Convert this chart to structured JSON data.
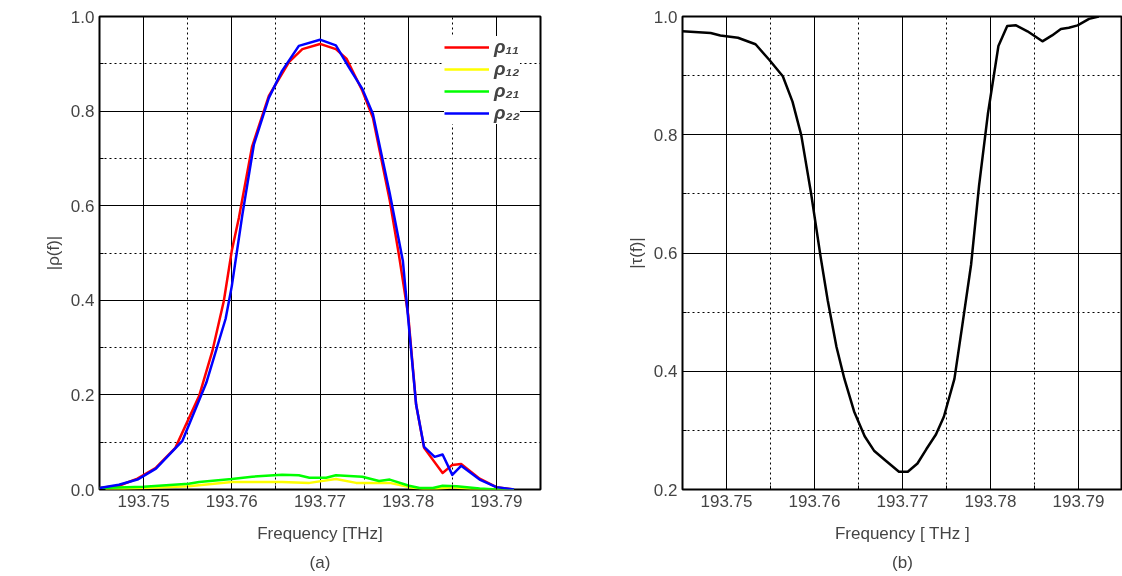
{
  "chart_data": [
    {
      "type": "line",
      "xlabel": "Frequency [THz]",
      "ylabel": "|ρ(f)|",
      "annotations": [
        "(a)"
      ],
      "xlim": [
        193.745,
        193.795
      ],
      "ylim": [
        0,
        1
      ],
      "xticks": [
        {
          "value": 193.75,
          "label": "193.75"
        },
        {
          "value": 193.755,
          "label": null
        },
        {
          "value": 193.76,
          "label": "193.76"
        },
        {
          "value": 193.765,
          "label": null
        },
        {
          "value": 193.77,
          "label": "193.77"
        },
        {
          "value": 193.775,
          "label": null
        },
        {
          "value": 193.78,
          "label": "193.78"
        },
        {
          "value": 193.785,
          "label": null
        },
        {
          "value": 193.79,
          "label": "193.79"
        }
      ],
      "yticks": [
        {
          "value": 0,
          "label": "0.0"
        },
        {
          "value": 0.1,
          "label": null
        },
        {
          "value": 0.2,
          "label": "0.2"
        },
        {
          "value": 0.3,
          "label": null
        },
        {
          "value": 0.4,
          "label": "0.4"
        },
        {
          "value": 0.5,
          "label": null
        },
        {
          "value": 0.6,
          "label": "0.6"
        },
        {
          "value": 0.7,
          "label": null
        },
        {
          "value": 0.8,
          "label": "0.8"
        },
        {
          "value": 0.9,
          "label": null
        },
        {
          "value": 1,
          "label": "1.0"
        }
      ],
      "grid": true,
      "legend": "top right",
      "line_style": "solid",
      "series": [
        {
          "name": "ρ₁₁",
          "color": "#ff0000",
          "x": [
            193.745,
            193.7472,
            193.7493,
            193.7514,
            193.7536,
            193.7563,
            193.7578,
            193.7591,
            193.76,
            193.7608,
            193.7623,
            193.7642,
            193.7665,
            193.768,
            193.77,
            193.7718,
            193.773,
            193.7748,
            193.776,
            193.7779,
            193.779,
            193.78,
            193.7809,
            193.7818,
            193.7839,
            193.785,
            193.786,
            193.7881,
            193.79,
            193.792
          ],
          "values": [
            0.003,
            0.008,
            0.023,
            0.046,
            0.088,
            0.198,
            0.293,
            0.399,
            0.505,
            0.574,
            0.725,
            0.832,
            0.904,
            0.931,
            0.942,
            0.931,
            0.911,
            0.843,
            0.786,
            0.612,
            0.49,
            0.369,
            0.179,
            0.088,
            0.035,
            0.052,
            0.054,
            0.023,
            0.005,
            0
          ]
        },
        {
          "name": "ρ₁₂",
          "color": "#ffff00",
          "x": [
            193.745,
            193.75,
            193.7551,
            193.76,
            193.7657,
            193.7688,
            193.7718,
            193.7741,
            193.7779,
            193.7801,
            193.7824,
            193.785,
            193.7881,
            193.792
          ],
          "values": [
            0,
            0.003,
            0.007,
            0.016,
            0.016,
            0.014,
            0.022,
            0.014,
            0.014,
            0.005,
            0,
            0.005,
            0,
            0
          ]
        },
        {
          "name": "ρ₂₁",
          "color": "#00ff00",
          "x": [
            193.745,
            193.75,
            193.7551,
            193.7563,
            193.76,
            193.7623,
            193.7657,
            193.7676,
            193.7688,
            193.7707,
            193.7718,
            193.7748,
            193.7767,
            193.7779,
            193.7801,
            193.7813,
            193.7828,
            193.7839,
            193.7855,
            193.7881,
            193.79,
            193.792
          ],
          "values": [
            0.003,
            0.006,
            0.012,
            0.016,
            0.022,
            0.027,
            0.031,
            0.03,
            0.025,
            0.025,
            0.03,
            0.027,
            0.018,
            0.021,
            0.008,
            0.003,
            0.003,
            0.008,
            0.007,
            0.002,
            0,
            0
          ]
        },
        {
          "name": "ρ₂₂",
          "color": "#0000ff",
          "x": [
            193.745,
            193.7472,
            193.7493,
            193.7514,
            193.7544,
            193.7571,
            193.7593,
            193.76,
            193.7612,
            193.7625,
            193.7642,
            193.7657,
            193.7676,
            193.77,
            193.7718,
            193.7733,
            193.7748,
            193.776,
            193.7779,
            193.7794,
            193.7809,
            193.7818,
            193.783,
            193.7839,
            193.785,
            193.786,
            193.7881,
            193.79,
            193.792
          ],
          "values": [
            0.003,
            0.01,
            0.021,
            0.044,
            0.103,
            0.225,
            0.361,
            0.43,
            0.581,
            0.729,
            0.828,
            0.885,
            0.938,
            0.951,
            0.939,
            0.892,
            0.847,
            0.794,
            0.627,
            0.483,
            0.179,
            0.09,
            0.069,
            0.074,
            0.031,
            0.05,
            0.021,
            0.005,
            0
          ]
        }
      ]
    },
    {
      "type": "line",
      "xlabel": "Frequency [ THz ]",
      "ylabel": "|τ(f)|",
      "annotations": [
        "(b)"
      ],
      "xlim": [
        193.745,
        193.795
      ],
      "ylim": [
        0.2,
        1
      ],
      "xticks": [
        {
          "value": 193.75,
          "label": "193.75"
        },
        {
          "value": 193.755,
          "label": null
        },
        {
          "value": 193.76,
          "label": "193.76"
        },
        {
          "value": 193.765,
          "label": null
        },
        {
          "value": 193.77,
          "label": "193.77"
        },
        {
          "value": 193.775,
          "label": null
        },
        {
          "value": 193.78,
          "label": "193.78"
        },
        {
          "value": 193.785,
          "label": null
        },
        {
          "value": 193.79,
          "label": "193.79"
        }
      ],
      "yticks": [
        {
          "value": 0.2,
          "label": "0.2"
        },
        {
          "value": 0.3,
          "label": null
        },
        {
          "value": 0.4,
          "label": "0.4"
        },
        {
          "value": 0.5,
          "label": null
        },
        {
          "value": 0.6,
          "label": "0.6"
        },
        {
          "value": 0.7,
          "label": null
        },
        {
          "value": 0.8,
          "label": "0.8"
        },
        {
          "value": 0.9,
          "label": null
        },
        {
          "value": 1,
          "label": "1.0"
        }
      ],
      "grid": true,
      "line_style": "solid",
      "series": [
        {
          "color": "#000000",
          "x": [
            193.745,
            193.7482,
            193.7493,
            193.7513,
            193.7533,
            193.7549,
            193.7564,
            193.7575,
            193.7585,
            193.7596,
            193.7607,
            193.7615,
            193.7625,
            193.7634,
            193.7645,
            193.7657,
            193.7668,
            193.768,
            193.7696,
            193.7706,
            193.7717,
            193.7727,
            193.7738,
            193.7747,
            193.7759,
            193.7768,
            193.7778,
            193.7787,
            193.7797,
            193.7809,
            193.7819,
            193.7829,
            193.7842,
            193.7859,
            193.787,
            193.788,
            193.7889,
            193.7899,
            193.7912,
            193.7923
          ],
          "values": [
            0.975,
            0.972,
            0.968,
            0.964,
            0.953,
            0.926,
            0.899,
            0.856,
            0.799,
            0.702,
            0.593,
            0.52,
            0.441,
            0.387,
            0.332,
            0.29,
            0.265,
            0.25,
            0.23,
            0.23,
            0.244,
            0.268,
            0.293,
            0.323,
            0.387,
            0.478,
            0.581,
            0.714,
            0.835,
            0.95,
            0.984,
            0.985,
            0.975,
            0.958,
            0.968,
            0.979,
            0.981,
            0.985,
            0.996,
            1.0
          ]
        }
      ]
    }
  ]
}
